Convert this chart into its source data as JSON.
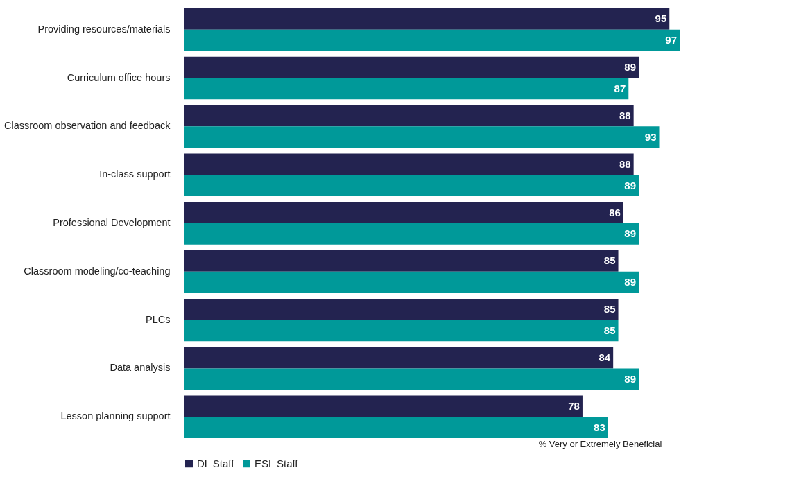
{
  "chart_data": {
    "type": "bar",
    "orientation": "horizontal",
    "xlabel": "% Very or Extremely Beneficial",
    "categories": [
      "Providing resources/materials",
      "Curriculum office hours",
      "Classroom observation and feedback",
      "In-class support",
      "Professional Development",
      "Classroom modeling/co-teaching",
      "PLCs",
      "Data analysis",
      "Lesson planning support"
    ],
    "series": [
      {
        "name": "DL Staff",
        "color": "#232350",
        "values": [
          95,
          89,
          88,
          88,
          86,
          85,
          85,
          84,
          78
        ]
      },
      {
        "name": "ESL Staff",
        "color": "#009999",
        "values": [
          97,
          87,
          93,
          89,
          89,
          89,
          85,
          89,
          83
        ]
      }
    ],
    "data_labels": true,
    "legend": "bottom",
    "tick_labels": "y",
    "grid": false
  }
}
